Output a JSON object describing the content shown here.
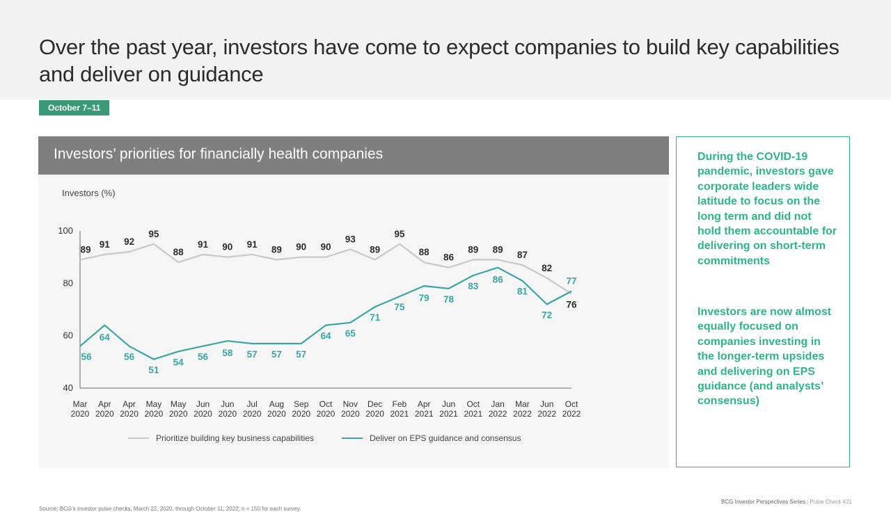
{
  "title": "Over the past year, investors have come to expect companies to build key capabilities and deliver on guidance",
  "date_badge": "October 7–11",
  "chart_data": {
    "type": "line",
    "title": "Investors’ priorities for financially health companies",
    "ylabel": "Investors (%)",
    "ylim": [
      40,
      100
    ],
    "yticks": [
      40,
      60,
      80,
      100
    ],
    "x_months": [
      "Mar",
      "Apr",
      "Apr",
      "May",
      "May",
      "Jun",
      "Jun",
      "Jul",
      "Aug",
      "Sep",
      "Oct",
      "Nov",
      "Dec",
      "Feb",
      "Apr",
      "Jun",
      "Oct",
      "Jan",
      "Mar",
      "Jun",
      "Oct"
    ],
    "x_years": [
      "2020",
      "2020",
      "2020",
      "2020",
      "2020",
      "2020",
      "2020",
      "2020",
      "2020",
      "2020",
      "2020",
      "2020",
      "2020",
      "2021",
      "2021",
      "2021",
      "2021",
      "2022",
      "2022",
      "2022",
      "2022"
    ],
    "series": [
      {
        "name": "Prioritize building key business capabilities",
        "color": "#c8c8c8",
        "label_color": "#2b2b2b",
        "values": [
          89,
          91,
          92,
          95,
          88,
          91,
          90,
          91,
          89,
          90,
          90,
          93,
          89,
          95,
          88,
          86,
          89,
          89,
          87,
          82,
          76
        ]
      },
      {
        "name": "Deliver on EPS guidance and consensus",
        "color": "#3aa5a2",
        "label_color": "#3aa5a2",
        "values": [
          56,
          64,
          56,
          51,
          54,
          56,
          58,
          57,
          57,
          57,
          64,
          65,
          71,
          75,
          79,
          78,
          83,
          86,
          81,
          72,
          77
        ]
      }
    ],
    "legend_position": "bottom",
    "grid": false
  },
  "side_panel": {
    "paragraph_1": "During the COVID-19 pandemic, investors gave corporate leaders wide latitude to focus on the long term and did not hold them accountable for delivering on short-term commitments",
    "paragraph_2": "Investors are now almost equally focused on companies investing in the longer-term upsides and delivering on EPS guidance (and analysts’ consensus)"
  },
  "footer": {
    "source": "Source: BCG’s investor pulse checks, March 22, 2020, through October 11, 2022; n = 150 for each survey.",
    "series": "BCG Investor Perspectives Series",
    "separator": "|",
    "pulse": "Pulse Check #21"
  }
}
